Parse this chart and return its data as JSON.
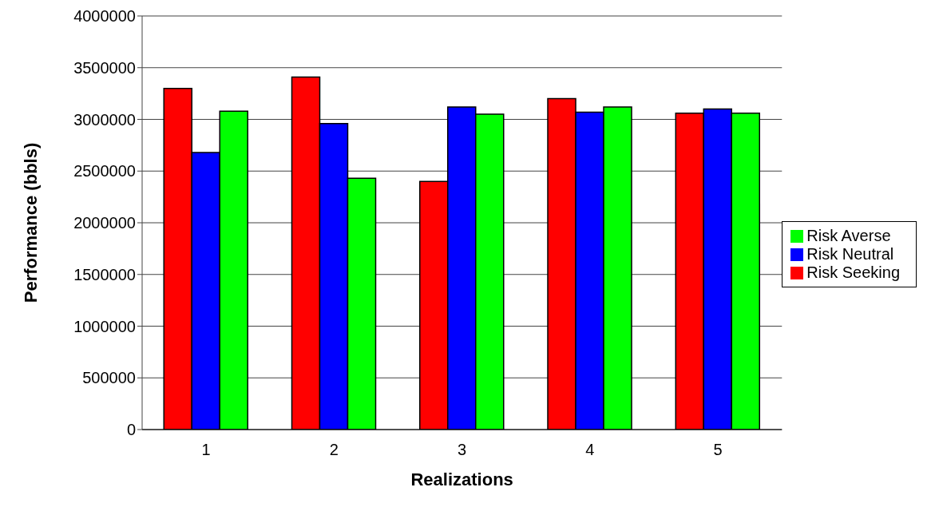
{
  "chart_data": {
    "type": "bar",
    "xlabel": "Realizations",
    "ylabel": "Performance (bbls)",
    "categories": [
      "1",
      "2",
      "3",
      "4",
      "5"
    ],
    "series": [
      {
        "name": "Risk Seeking",
        "color": "#ff0000",
        "values": [
          3300000,
          3410000,
          2400000,
          3200000,
          3060000
        ]
      },
      {
        "name": "Risk Neutral",
        "color": "#0000ff",
        "values": [
          2680000,
          2960000,
          3120000,
          3070000,
          3100000
        ]
      },
      {
        "name": "Risk Averse",
        "color": "#00ff00",
        "values": [
          3080000,
          2430000,
          3050000,
          3120000,
          3060000
        ]
      }
    ],
    "ylim": [
      0,
      4000000
    ],
    "yticks": [
      0,
      500000,
      1000000,
      1500000,
      2000000,
      2500000,
      3000000,
      3500000,
      4000000
    ],
    "grid": "y",
    "legend": "right"
  }
}
